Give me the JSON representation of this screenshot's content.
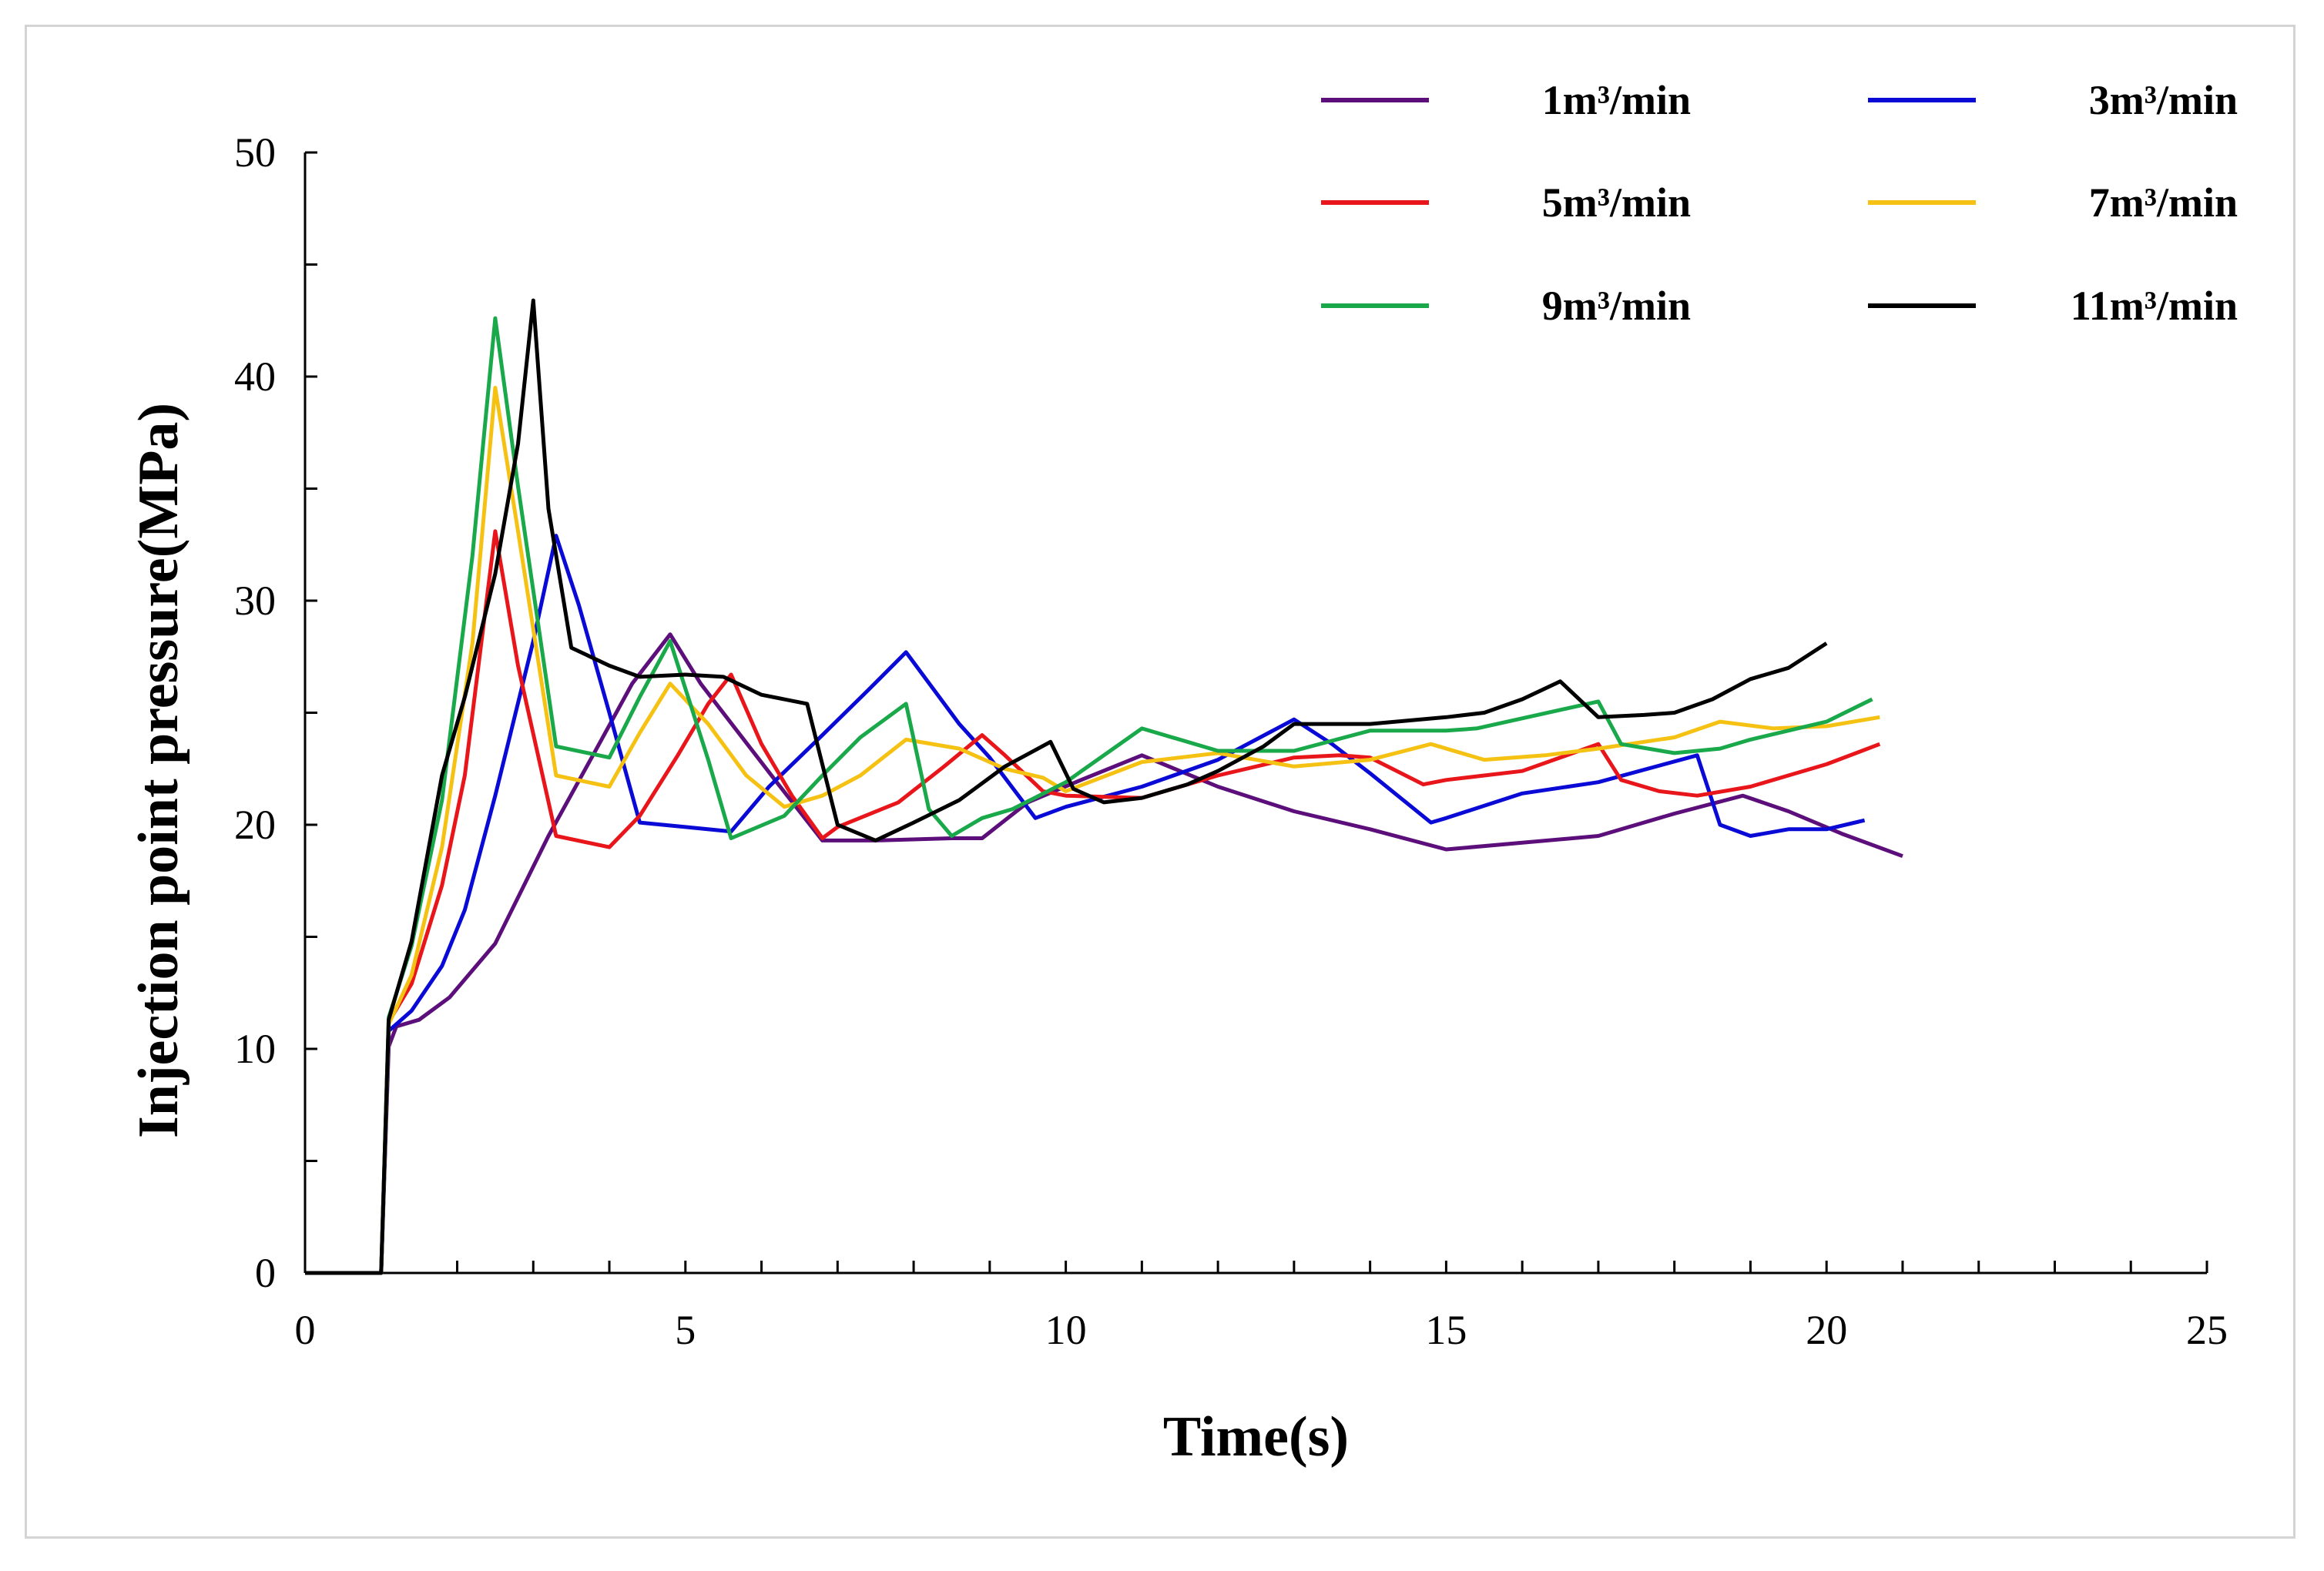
{
  "chart_data": {
    "type": "line",
    "title": "",
    "xlabel": "Time(s)",
    "ylabel": "Injection point pressure(MPa)",
    "xlim": [
      0,
      25
    ],
    "ylim": [
      0,
      50
    ],
    "x_ticks": [
      0,
      5,
      10,
      15,
      20,
      25
    ],
    "y_ticks": [
      0,
      10,
      20,
      30,
      40,
      50
    ],
    "x_tick_labels": [
      "0",
      "5",
      "10",
      "15",
      "20",
      "25"
    ],
    "y_tick_labels": [
      "0",
      "10",
      "20",
      "30",
      "40",
      "50"
    ],
    "legend_position": "top-right",
    "grid": false,
    "series": [
      {
        "name": "1m³/min",
        "color": "#5c0f7a",
        "points": [
          [
            0,
            0
          ],
          [
            1,
            0
          ],
          [
            1.1,
            10.1
          ],
          [
            1.2,
            11.0
          ],
          [
            1.5,
            11.3
          ],
          [
            1.9,
            12.3
          ],
          [
            2.5,
            14.7
          ],
          [
            3.2,
            19.5
          ],
          [
            3.8,
            23.2
          ],
          [
            4.3,
            26.3
          ],
          [
            4.8,
            28.5
          ],
          [
            5.2,
            26.3
          ],
          [
            5.7,
            24.1
          ],
          [
            6.2,
            21.9
          ],
          [
            6.8,
            19.3
          ],
          [
            7.5,
            19.3
          ],
          [
            8.5,
            19.4
          ],
          [
            8.9,
            19.4
          ],
          [
            9.5,
            21.0
          ],
          [
            10.2,
            22.0
          ],
          [
            11,
            23.1
          ],
          [
            12,
            21.7
          ],
          [
            13,
            20.6
          ],
          [
            14,
            19.8
          ],
          [
            15,
            18.9
          ],
          [
            16,
            19.2
          ],
          [
            17,
            19.5
          ],
          [
            18,
            20.5
          ],
          [
            18.9,
            21.3
          ],
          [
            19.5,
            20.6
          ],
          [
            20.2,
            19.6
          ],
          [
            21,
            18.6
          ]
        ]
      },
      {
        "name": "3m³/min",
        "color": "#0a0ad6",
        "points": [
          [
            0,
            0
          ],
          [
            1,
            0
          ],
          [
            1.1,
            10.8
          ],
          [
            1.4,
            11.7
          ],
          [
            1.8,
            13.7
          ],
          [
            2.1,
            16.2
          ],
          [
            2.5,
            21.3
          ],
          [
            3,
            28.2
          ],
          [
            3.3,
            32.9
          ],
          [
            3.6,
            29.8
          ],
          [
            4,
            25.0
          ],
          [
            4.4,
            20.1
          ],
          [
            5,
            19.9
          ],
          [
            5.6,
            19.7
          ],
          [
            6.1,
            21.7
          ],
          [
            6.8,
            24.0
          ],
          [
            7.4,
            26.0
          ],
          [
            7.9,
            27.7
          ],
          [
            8.6,
            24.5
          ],
          [
            9,
            23.0
          ],
          [
            9.6,
            20.3
          ],
          [
            10,
            20.8
          ],
          [
            11,
            21.7
          ],
          [
            12,
            22.9
          ],
          [
            13,
            24.7
          ],
          [
            13.5,
            23.6
          ],
          [
            14,
            22.3
          ],
          [
            14.8,
            20.1
          ],
          [
            15,
            20.3
          ],
          [
            16,
            21.4
          ],
          [
            17,
            21.9
          ],
          [
            18.3,
            23.1
          ],
          [
            18.6,
            20.0
          ],
          [
            19,
            19.5
          ],
          [
            19.5,
            19.8
          ],
          [
            20,
            19.8
          ],
          [
            20.5,
            20.2
          ]
        ]
      },
      {
        "name": "5m³/min",
        "color": "#e8161a",
        "points": [
          [
            0,
            0
          ],
          [
            1,
            0
          ],
          [
            1.1,
            11.2
          ],
          [
            1.4,
            12.9
          ],
          [
            1.8,
            17.3
          ],
          [
            2.1,
            22.2
          ],
          [
            2.5,
            33.1
          ],
          [
            2.8,
            27.1
          ],
          [
            3.3,
            19.5
          ],
          [
            4,
            19.0
          ],
          [
            4.4,
            20.4
          ],
          [
            4.9,
            23.1
          ],
          [
            5.3,
            25.4
          ],
          [
            5.6,
            26.7
          ],
          [
            6,
            23.6
          ],
          [
            6.4,
            21.3
          ],
          [
            6.8,
            19.4
          ],
          [
            7,
            19.9
          ],
          [
            7.8,
            21.0
          ],
          [
            8.4,
            22.6
          ],
          [
            8.9,
            24.0
          ],
          [
            9.2,
            23.1
          ],
          [
            9.7,
            21.5
          ],
          [
            10,
            21.3
          ],
          [
            11,
            21.2
          ],
          [
            12,
            22.2
          ],
          [
            13,
            23.0
          ],
          [
            13.6,
            23.1
          ],
          [
            14,
            23.0
          ],
          [
            14.7,
            21.8
          ],
          [
            15,
            22.0
          ],
          [
            16,
            22.4
          ],
          [
            17,
            23.6
          ],
          [
            17.3,
            22.0
          ],
          [
            17.8,
            21.5
          ],
          [
            18.3,
            21.3
          ],
          [
            19,
            21.7
          ],
          [
            20,
            22.7
          ],
          [
            20.7,
            23.6
          ]
        ]
      },
      {
        "name": "7m³/min",
        "color": "#f5c214",
        "points": [
          [
            0,
            0
          ],
          [
            1,
            0
          ],
          [
            1.1,
            11.1
          ],
          [
            1.4,
            13.3
          ],
          [
            1.8,
            19.0
          ],
          [
            2.2,
            28.1
          ],
          [
            2.5,
            39.5
          ],
          [
            2.8,
            33.1
          ],
          [
            3.3,
            22.2
          ],
          [
            4,
            21.7
          ],
          [
            4.4,
            24.1
          ],
          [
            4.8,
            26.3
          ],
          [
            5.3,
            24.5
          ],
          [
            5.8,
            22.2
          ],
          [
            6.3,
            20.8
          ],
          [
            6.8,
            21.3
          ],
          [
            7.3,
            22.2
          ],
          [
            7.9,
            23.8
          ],
          [
            8.6,
            23.4
          ],
          [
            9.2,
            22.5
          ],
          [
            9.7,
            22.1
          ],
          [
            10,
            21.5
          ],
          [
            11,
            22.8
          ],
          [
            12,
            23.2
          ],
          [
            13,
            22.6
          ],
          [
            14,
            22.9
          ],
          [
            14.8,
            23.6
          ],
          [
            15.5,
            22.9
          ],
          [
            16.3,
            23.1
          ],
          [
            17,
            23.4
          ],
          [
            18,
            23.9
          ],
          [
            18.6,
            24.6
          ],
          [
            19.3,
            24.3
          ],
          [
            20,
            24.4
          ],
          [
            20.7,
            24.8
          ]
        ]
      },
      {
        "name": "9m³/min",
        "color": "#19a84a",
        "points": [
          [
            0,
            0
          ],
          [
            1,
            0
          ],
          [
            1.1,
            11.4
          ],
          [
            1.4,
            14.6
          ],
          [
            1.8,
            21.1
          ],
          [
            2.2,
            32.0
          ],
          [
            2.5,
            42.6
          ],
          [
            2.8,
            35.1
          ],
          [
            3.3,
            23.5
          ],
          [
            4,
            23.0
          ],
          [
            4.4,
            25.7
          ],
          [
            4.8,
            28.2
          ],
          [
            5.3,
            22.9
          ],
          [
            5.6,
            19.4
          ],
          [
            6.3,
            20.4
          ],
          [
            6.8,
            22.2
          ],
          [
            7.3,
            23.9
          ],
          [
            7.9,
            25.4
          ],
          [
            8.2,
            20.7
          ],
          [
            8.5,
            19.5
          ],
          [
            8.9,
            20.3
          ],
          [
            9.3,
            20.7
          ],
          [
            10,
            21.9
          ],
          [
            11,
            24.3
          ],
          [
            12,
            23.3
          ],
          [
            13,
            23.3
          ],
          [
            14,
            24.2
          ],
          [
            15,
            24.2
          ],
          [
            15.4,
            24.3
          ],
          [
            17,
            25.5
          ],
          [
            17.3,
            23.6
          ],
          [
            18,
            23.2
          ],
          [
            18.6,
            23.4
          ],
          [
            19,
            23.8
          ],
          [
            20,
            24.6
          ],
          [
            20.6,
            25.6
          ]
        ]
      },
      {
        "name": "11m³/min",
        "color": "#000000",
        "points": [
          [
            0,
            0
          ],
          [
            1,
            0
          ],
          [
            1.1,
            11.3
          ],
          [
            1.4,
            14.8
          ],
          [
            1.8,
            22.2
          ],
          [
            2.1,
            25.7
          ],
          [
            2.5,
            31.2
          ],
          [
            2.8,
            37.0
          ],
          [
            3,
            43.4
          ],
          [
            3.2,
            34.1
          ],
          [
            3.5,
            27.9
          ],
          [
            4,
            27.1
          ],
          [
            4.4,
            26.6
          ],
          [
            5,
            26.7
          ],
          [
            5.5,
            26.6
          ],
          [
            6,
            25.8
          ],
          [
            6.6,
            25.4
          ],
          [
            7,
            20.0
          ],
          [
            7.5,
            19.3
          ],
          [
            8,
            20.1
          ],
          [
            8.6,
            21.1
          ],
          [
            9.2,
            22.6
          ],
          [
            9.8,
            23.7
          ],
          [
            10.1,
            21.6
          ],
          [
            10.5,
            21.0
          ],
          [
            11,
            21.2
          ],
          [
            11.6,
            21.8
          ],
          [
            12,
            22.4
          ],
          [
            12.6,
            23.5
          ],
          [
            13,
            24.5
          ],
          [
            14,
            24.5
          ],
          [
            15,
            24.8
          ],
          [
            15.5,
            25.0
          ],
          [
            16,
            25.6
          ],
          [
            16.5,
            26.4
          ],
          [
            17,
            24.8
          ],
          [
            17.6,
            24.9
          ],
          [
            18,
            25.0
          ],
          [
            18.5,
            25.6
          ],
          [
            19,
            26.5
          ],
          [
            19.5,
            27.0
          ],
          [
            20,
            28.1
          ]
        ]
      }
    ]
  }
}
